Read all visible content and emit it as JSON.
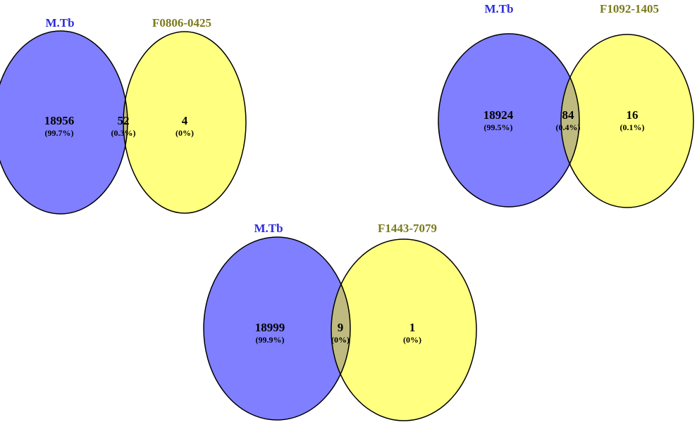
{
  "colors": {
    "left_set": "#7f7fff",
    "right_set": "#ffff80",
    "overlap": "#bfbb80",
    "left_label": "#2b2bdc",
    "right_label": "#7a7a1c"
  },
  "venns": [
    {
      "left_label": "M.Tb",
      "right_label": "F0806-0425",
      "left_only": {
        "count": "18956",
        "pct": "(99.7%)"
      },
      "both": {
        "count": "52",
        "pct": "(0.3%)"
      },
      "right_only": {
        "count": "4",
        "pct": "(0%)"
      }
    },
    {
      "left_label": "M.Tb",
      "right_label": "F1092-1405",
      "left_only": {
        "count": "18924",
        "pct": "(99.5%)"
      },
      "both": {
        "count": "84",
        "pct": "(0.4%)"
      },
      "right_only": {
        "count": "16",
        "pct": "(0.1%)"
      }
    },
    {
      "left_label": "M.Tb",
      "right_label": "F1443-7079",
      "left_only": {
        "count": "18999",
        "pct": "(99.9%)"
      },
      "both": {
        "count": "9",
        "pct": "(0%)"
      },
      "right_only": {
        "count": "1",
        "pct": "(0%)"
      }
    }
  ]
}
